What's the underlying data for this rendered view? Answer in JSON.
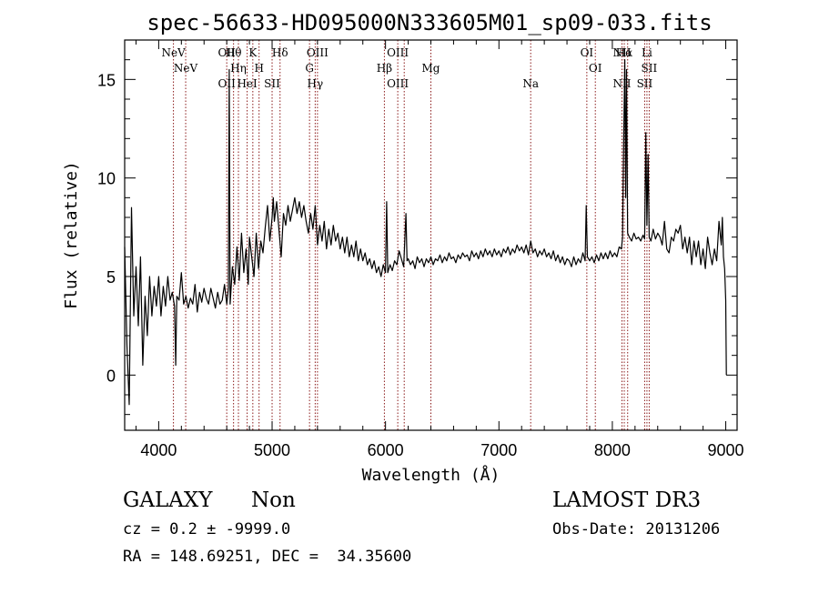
{
  "chart_data": {
    "type": "line",
    "title": "spec-56633-HD095000N333605M01_sp09-033.fits",
    "xlabel": "Wavelength (Å)",
    "ylabel": "Flux (relative)",
    "xlim": [
      3700,
      9100
    ],
    "ylim": [
      -2.8,
      17.0
    ],
    "x_ticks": [
      4000,
      5000,
      6000,
      7000,
      8000,
      9000
    ],
    "y_ticks": [
      0,
      5,
      10,
      15
    ],
    "grid": false,
    "line_color": "#000000",
    "marker_color": "#8b1a1a",
    "series": [
      {
        "values": [
          [
            3700,
            6.5
          ],
          [
            3720,
            1.5
          ],
          [
            3740,
            -1.5
          ],
          [
            3760,
            8.5
          ],
          [
            3780,
            3.0
          ],
          [
            3800,
            5.5
          ],
          [
            3820,
            2.5
          ],
          [
            3840,
            6.0
          ],
          [
            3860,
            0.5
          ],
          [
            3880,
            4.0
          ],
          [
            3900,
            2.0
          ],
          [
            3920,
            5.0
          ],
          [
            3940,
            3.0
          ],
          [
            3960,
            4.5
          ],
          [
            3980,
            3.5
          ],
          [
            4000,
            5.0
          ],
          [
            4020,
            3.0
          ],
          [
            4040,
            4.5
          ],
          [
            4060,
            3.5
          ],
          [
            4080,
            5.0
          ],
          [
            4100,
            3.8
          ],
          [
            4120,
            4.2
          ],
          [
            4140,
            3.5
          ],
          [
            4150,
            0.5
          ],
          [
            4160,
            4.0
          ],
          [
            4180,
            3.8
          ],
          [
            4200,
            5.2
          ],
          [
            4220,
            3.6
          ],
          [
            4240,
            4.0
          ],
          [
            4260,
            3.4
          ],
          [
            4280,
            3.9
          ],
          [
            4300,
            3.6
          ],
          [
            4320,
            4.6
          ],
          [
            4340,
            3.2
          ],
          [
            4360,
            4.2
          ],
          [
            4380,
            3.7
          ],
          [
            4400,
            4.4
          ],
          [
            4420,
            3.9
          ],
          [
            4440,
            3.6
          ],
          [
            4460,
            4.4
          ],
          [
            4480,
            3.9
          ],
          [
            4500,
            3.4
          ],
          [
            4520,
            4.2
          ],
          [
            4540,
            3.6
          ],
          [
            4560,
            3.8
          ],
          [
            4580,
            4.6
          ],
          [
            4600,
            3.6
          ],
          [
            4615,
            4.4
          ],
          [
            4622,
            15.5
          ],
          [
            4630,
            3.6
          ],
          [
            4650,
            5.5
          ],
          [
            4670,
            4.6
          ],
          [
            4690,
            6.5
          ],
          [
            4710,
            4.8
          ],
          [
            4730,
            7.2
          ],
          [
            4750,
            5.2
          ],
          [
            4770,
            6.4
          ],
          [
            4790,
            4.6
          ],
          [
            4800,
            7.0
          ],
          [
            4820,
            6.0
          ],
          [
            4840,
            5.0
          ],
          [
            4860,
            7.2
          ],
          [
            4880,
            5.4
          ],
          [
            4900,
            6.8
          ],
          [
            4920,
            6.2
          ],
          [
            4940,
            7.5
          ],
          [
            4960,
            8.6
          ],
          [
            4980,
            6.8
          ],
          [
            5000,
            8.0
          ],
          [
            5010,
            9.0
          ],
          [
            5020,
            7.8
          ],
          [
            5040,
            8.8
          ],
          [
            5060,
            7.4
          ],
          [
            5080,
            6.0
          ],
          [
            5100,
            8.2
          ],
          [
            5120,
            7.6
          ],
          [
            5140,
            8.6
          ],
          [
            5160,
            7.8
          ],
          [
            5180,
            8.4
          ],
          [
            5200,
            9.0
          ],
          [
            5220,
            8.2
          ],
          [
            5240,
            8.8
          ],
          [
            5260,
            8.0
          ],
          [
            5280,
            8.6
          ],
          [
            5300,
            7.8
          ],
          [
            5320,
            7.2
          ],
          [
            5340,
            8.2
          ],
          [
            5360,
            7.4
          ],
          [
            5380,
            8.6
          ],
          [
            5400,
            6.6
          ],
          [
            5420,
            7.6
          ],
          [
            5440,
            6.8
          ],
          [
            5460,
            7.8
          ],
          [
            5480,
            6.4
          ],
          [
            5500,
            7.4
          ],
          [
            5520,
            6.6
          ],
          [
            5540,
            7.6
          ],
          [
            5560,
            6.8
          ],
          [
            5580,
            7.2
          ],
          [
            5600,
            6.4
          ],
          [
            5620,
            7.0
          ],
          [
            5640,
            6.2
          ],
          [
            5660,
            7.0
          ],
          [
            5680,
            6.0
          ],
          [
            5700,
            6.6
          ],
          [
            5720,
            6.0
          ],
          [
            5740,
            6.8
          ],
          [
            5760,
            5.8
          ],
          [
            5780,
            6.4
          ],
          [
            5800,
            5.8
          ],
          [
            5820,
            6.2
          ],
          [
            5840,
            5.6
          ],
          [
            5860,
            5.9
          ],
          [
            5880,
            5.4
          ],
          [
            5900,
            5.8
          ],
          [
            5920,
            5.2
          ],
          [
            5940,
            5.5
          ],
          [
            5960,
            5.0
          ],
          [
            5980,
            5.6
          ],
          [
            6000,
            5.2
          ],
          [
            6010,
            8.8
          ],
          [
            6020,
            5.2
          ],
          [
            6040,
            5.6
          ],
          [
            6060,
            5.3
          ],
          [
            6080,
            5.8
          ],
          [
            6100,
            5.6
          ],
          [
            6120,
            6.3
          ],
          [
            6140,
            5.9
          ],
          [
            6160,
            5.5
          ],
          [
            6180,
            8.2
          ],
          [
            6190,
            5.8
          ],
          [
            6200,
            5.9
          ],
          [
            6220,
            5.6
          ],
          [
            6240,
            5.8
          ],
          [
            6260,
            5.4
          ],
          [
            6280,
            6.0
          ],
          [
            6300,
            5.7
          ],
          [
            6320,
            5.9
          ],
          [
            6340,
            5.5
          ],
          [
            6360,
            5.9
          ],
          [
            6380,
            5.7
          ],
          [
            6400,
            6.0
          ],
          [
            6420,
            5.6
          ],
          [
            6440,
            5.9
          ],
          [
            6460,
            5.8
          ],
          [
            6480,
            6.1
          ],
          [
            6500,
            5.7
          ],
          [
            6520,
            6.0
          ],
          [
            6540,
            5.8
          ],
          [
            6560,
            6.2
          ],
          [
            6580,
            5.9
          ],
          [
            6600,
            6.0
          ],
          [
            6620,
            5.7
          ],
          [
            6640,
            6.1
          ],
          [
            6660,
            5.9
          ],
          [
            6680,
            6.2
          ],
          [
            6700,
            6.0
          ],
          [
            6720,
            6.1
          ],
          [
            6740,
            5.8
          ],
          [
            6760,
            6.3
          ],
          [
            6780,
            6.0
          ],
          [
            6800,
            6.2
          ],
          [
            6820,
            5.9
          ],
          [
            6840,
            6.3
          ],
          [
            6860,
            6.0
          ],
          [
            6880,
            6.4
          ],
          [
            6900,
            6.1
          ],
          [
            6920,
            6.3
          ],
          [
            6940,
            6.0
          ],
          [
            6960,
            6.4
          ],
          [
            6980,
            6.1
          ],
          [
            7000,
            6.3
          ],
          [
            7020,
            6.0
          ],
          [
            7040,
            6.4
          ],
          [
            7060,
            6.2
          ],
          [
            7080,
            6.5
          ],
          [
            7100,
            6.1
          ],
          [
            7120,
            6.4
          ],
          [
            7140,
            6.2
          ],
          [
            7160,
            6.6
          ],
          [
            7180,
            6.3
          ],
          [
            7200,
            6.5
          ],
          [
            7220,
            6.2
          ],
          [
            7240,
            6.6
          ],
          [
            7260,
            6.1
          ],
          [
            7280,
            6.8
          ],
          [
            7300,
            6.2
          ],
          [
            7320,
            6.4
          ],
          [
            7340,
            6.0
          ],
          [
            7360,
            6.3
          ],
          [
            7380,
            6.1
          ],
          [
            7400,
            6.4
          ],
          [
            7420,
            6.0
          ],
          [
            7440,
            6.2
          ],
          [
            7460,
            5.9
          ],
          [
            7480,
            6.3
          ],
          [
            7500,
            5.8
          ],
          [
            7520,
            6.1
          ],
          [
            7540,
            5.7
          ],
          [
            7560,
            6.0
          ],
          [
            7580,
            5.6
          ],
          [
            7600,
            5.9
          ],
          [
            7620,
            5.8
          ],
          [
            7640,
            5.5
          ],
          [
            7660,
            6.0
          ],
          [
            7680,
            5.6
          ],
          [
            7700,
            5.9
          ],
          [
            7720,
            5.7
          ],
          [
            7740,
            6.2
          ],
          [
            7760,
            5.8
          ],
          [
            7770,
            8.6
          ],
          [
            7780,
            6.0
          ],
          [
            7800,
            5.8
          ],
          [
            7820,
            6.0
          ],
          [
            7840,
            5.7
          ],
          [
            7860,
            6.1
          ],
          [
            7880,
            5.8
          ],
          [
            7900,
            6.2
          ],
          [
            7920,
            5.9
          ],
          [
            7940,
            6.2
          ],
          [
            7960,
            5.9
          ],
          [
            7980,
            6.3
          ],
          [
            8000,
            6.0
          ],
          [
            8020,
            6.2
          ],
          [
            8040,
            6.0
          ],
          [
            8060,
            6.5
          ],
          [
            8080,
            6.4
          ],
          [
            8090,
            7.0
          ],
          [
            8100,
            12.0
          ],
          [
            8110,
            16.0
          ],
          [
            8118,
            9.0
          ],
          [
            8125,
            15.5
          ],
          [
            8135,
            7.2
          ],
          [
            8150,
            7.0
          ],
          [
            8170,
            6.8
          ],
          [
            8190,
            7.2
          ],
          [
            8210,
            6.9
          ],
          [
            8230,
            7.0
          ],
          [
            8250,
            6.8
          ],
          [
            8270,
            7.1
          ],
          [
            8285,
            6.9
          ],
          [
            8295,
            12.3
          ],
          [
            8305,
            7.6
          ],
          [
            8315,
            11.2
          ],
          [
            8325,
            7.0
          ],
          [
            8340,
            6.8
          ],
          [
            8360,
            7.4
          ],
          [
            8380,
            6.9
          ],
          [
            8400,
            7.2
          ],
          [
            8420,
            7.0
          ],
          [
            8440,
            6.6
          ],
          [
            8460,
            7.8
          ],
          [
            8480,
            6.4
          ],
          [
            8500,
            6.2
          ],
          [
            8520,
            7.0
          ],
          [
            8540,
            6.8
          ],
          [
            8560,
            7.4
          ],
          [
            8580,
            7.2
          ],
          [
            8600,
            7.6
          ],
          [
            8620,
            6.4
          ],
          [
            8640,
            7.0
          ],
          [
            8660,
            6.2
          ],
          [
            8680,
            7.0
          ],
          [
            8700,
            5.6
          ],
          [
            8720,
            6.8
          ],
          [
            8740,
            6.0
          ],
          [
            8760,
            6.8
          ],
          [
            8780,
            5.6
          ],
          [
            8800,
            6.4
          ],
          [
            8820,
            5.4
          ],
          [
            8840,
            7.0
          ],
          [
            8860,
            6.2
          ],
          [
            8880,
            5.6
          ],
          [
            8900,
            6.4
          ],
          [
            8920,
            5.8
          ],
          [
            8940,
            7.8
          ],
          [
            8960,
            6.6
          ],
          [
            8970,
            8.0
          ],
          [
            8980,
            6.0
          ],
          [
            8990,
            5.4
          ],
          [
            9000,
            3.8
          ],
          [
            9005,
            0.0
          ]
        ]
      }
    ],
    "line_markers": [
      {
        "x": 4130,
        "labels": [
          "NeV"
        ]
      },
      {
        "x": 4238,
        "labels": [
          "NeV"
        ]
      },
      {
        "x": 4600,
        "labels": [
          "OII",
          "OII"
        ]
      },
      {
        "x": 4660,
        "labels": [
          "Hθ"
        ]
      },
      {
        "x": 4703,
        "labels": [
          "Hη"
        ]
      },
      {
        "x": 4780,
        "labels": [
          "HeI"
        ]
      },
      {
        "x": 4830,
        "labels": [
          "K"
        ]
      },
      {
        "x": 4885,
        "labels": [
          "H"
        ]
      },
      {
        "x": 5000,
        "labels": [
          "SII"
        ]
      },
      {
        "x": 5070,
        "labels": [
          "Hδ"
        ]
      },
      {
        "x": 5330,
        "labels": [
          "G"
        ]
      },
      {
        "x": 5380,
        "labels": [
          "Hγ"
        ]
      },
      {
        "x": 5400,
        "labels": [
          "OIII"
        ]
      },
      {
        "x": 5990,
        "labels": [
          "Hβ"
        ]
      },
      {
        "x": 6108,
        "labels": [
          "OIII",
          "OIII"
        ]
      },
      {
        "x": 6165,
        "labels": []
      },
      {
        "x": 6400,
        "labels": [
          "Mg"
        ]
      },
      {
        "x": 7280,
        "labels": [
          "Na"
        ]
      },
      {
        "x": 7775,
        "labels": [
          "OI"
        ]
      },
      {
        "x": 7850,
        "labels": [
          "OI"
        ]
      },
      {
        "x": 8085,
        "labels": [
          "NII",
          "NII"
        ]
      },
      {
        "x": 8105,
        "labels": [
          "Hα"
        ]
      },
      {
        "x": 8135,
        "labels": []
      },
      {
        "x": 8285,
        "labels": [
          "SII"
        ]
      },
      {
        "x": 8305,
        "labels": [
          "Li"
        ]
      },
      {
        "x": 8325,
        "labels": [
          "SII"
        ]
      }
    ]
  },
  "info": {
    "object_class": "GALAXY",
    "subclass": "Non",
    "survey": "LAMOST DR3",
    "redshift": "cz = 0.2 ± -9999.0",
    "obs_date": "Obs-Date: 20131206",
    "coords": "RA = 148.69251, DEC =  34.35600"
  }
}
